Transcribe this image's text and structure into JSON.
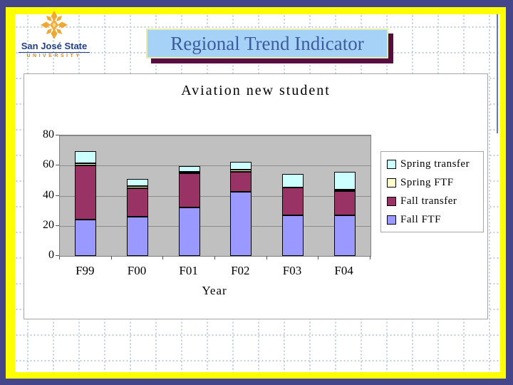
{
  "theme": {
    "outer_border": "#45458B",
    "frame": "#FFFF00",
    "banner_fill": "#A6D2F7",
    "banner_border": "#E6EFA8",
    "banner_shadow": "#570D3F",
    "banner_text_color": "#3D5C9F",
    "plot_background": "#C0C0C0",
    "logo_gold": "#EFA832"
  },
  "logo": {
    "name": "San José State",
    "subtitle": "UNIVERSITY"
  },
  "banner": {
    "title": "Regional Trend Indicator"
  },
  "chart_data": {
    "type": "bar",
    "stacked": true,
    "title": "Aviation new student",
    "xlabel": "Year",
    "ylabel": "",
    "categories": [
      "F99",
      "F00",
      "F01",
      "F02",
      "F03",
      "F04"
    ],
    "series": [
      {
        "name": "Fall FTF",
        "color": "#9999FF",
        "values": [
          24,
          26,
          32,
          42.5,
          27,
          27
        ]
      },
      {
        "name": "Fall transfer",
        "color": "#993366",
        "values": [
          36,
          19,
          23,
          13.5,
          18.5,
          16
        ]
      },
      {
        "name": "Spring FTF",
        "color": "#FFFFCC",
        "values": [
          1.5,
          1.5,
          0.5,
          1.5,
          0,
          1
        ]
      },
      {
        "name": "Spring transfer",
        "color": "#CCFFFF",
        "values": [
          8,
          4.5,
          3.5,
          5,
          9,
          12
        ]
      }
    ],
    "ylim": [
      0,
      80
    ],
    "yticks": [
      0,
      20,
      40,
      60,
      80
    ],
    "grid": true,
    "legend_position": "right",
    "legend_order": [
      "Spring transfer",
      "Spring FTF",
      "Fall transfer",
      "Fall FTF"
    ]
  }
}
